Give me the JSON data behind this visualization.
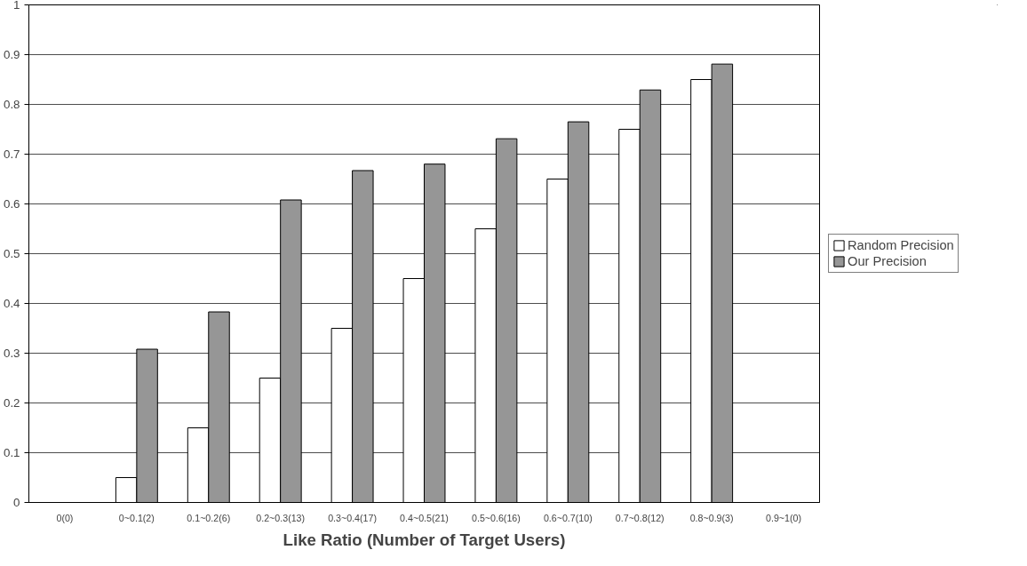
{
  "chart_data": {
    "type": "bar",
    "xlabel": "Like Ratio (Number of Target Users)",
    "categories": [
      "0(0)",
      "0~0.1(2)",
      "0.1~0.2(6)",
      "0.2~0.3(13)",
      "0.3~0.4(17)",
      "0.4~0.5(21)",
      "0.5~0.6(16)",
      "0.6~0.7(10)",
      "0.7~0.8(12)",
      "0.8~0.9(3)",
      "0.9~1(0)"
    ],
    "series": [
      {
        "name": "Random Precision",
        "color": "#ffffff",
        "values": [
          null,
          0.05,
          0.15,
          0.25,
          0.35,
          0.45,
          0.55,
          0.65,
          0.75,
          0.85,
          null
        ]
      },
      {
        "name": "Our Precision",
        "color": "#969696",
        "values": [
          null,
          0.308,
          0.383,
          0.608,
          0.667,
          0.68,
          0.731,
          0.765,
          0.829,
          0.881,
          null
        ]
      }
    ],
    "ylim": [
      0,
      1
    ],
    "yticks": [
      0,
      0.1,
      0.2,
      0.3,
      0.4,
      0.5,
      0.6,
      0.7,
      0.8,
      0.9,
      1
    ],
    "grid": "y",
    "legend": "right"
  }
}
